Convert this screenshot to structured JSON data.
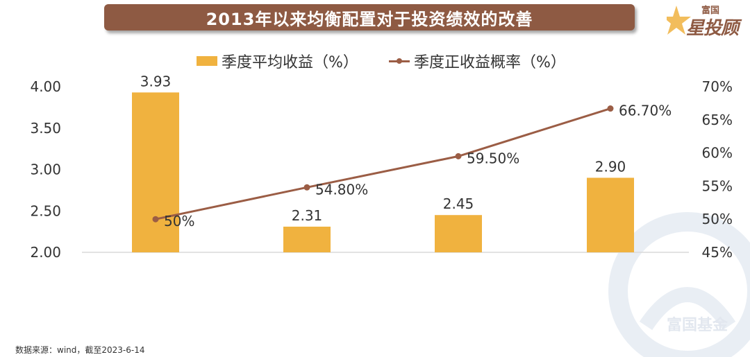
{
  "title": "2013年以来均衡配置对于投资绩效的改善",
  "brand": {
    "top": "富国",
    "main": "星投顾",
    "watermark": "富国基金"
  },
  "footer": {
    "source_note": "数据来源：wind，截至2023-6-14"
  },
  "colors": {
    "bar": "#f0b23f",
    "line": "#9b5d45",
    "title_bg": "#8e5a43"
  },
  "chart_data": {
    "type": "bar+line",
    "title": "2013年以来均衡配置对于投资绩效的改善",
    "categories": [
      "",
      "",
      "",
      ""
    ],
    "series": [
      {
        "name": "季度平均收益（%）",
        "type": "bar",
        "axis": "left",
        "values": [
          3.93,
          2.31,
          2.45,
          2.9
        ],
        "labels": [
          "3.93",
          "2.31",
          "2.45",
          "2.90"
        ]
      },
      {
        "name": "季度正收益概率（%）",
        "type": "line",
        "axis": "right",
        "values": [
          50.0,
          54.8,
          59.5,
          66.7
        ],
        "labels": [
          "50%",
          "54.80%",
          "59.50%",
          "66.70%"
        ]
      }
    ],
    "y_left": {
      "min": 2.0,
      "max": 4.0,
      "ticks": [
        "4.00",
        "3.50",
        "3.00",
        "2.50",
        "2.00"
      ],
      "tick_values": [
        4.0,
        3.5,
        3.0,
        2.5,
        2.0
      ]
    },
    "y_right": {
      "min": 45,
      "max": 70,
      "ticks": [
        "70%",
        "65%",
        "60%",
        "55%",
        "50%",
        "45%"
      ],
      "tick_values": [
        70,
        65,
        60,
        55,
        50,
        45
      ]
    },
    "legend_position": "top-center",
    "grid": false
  }
}
